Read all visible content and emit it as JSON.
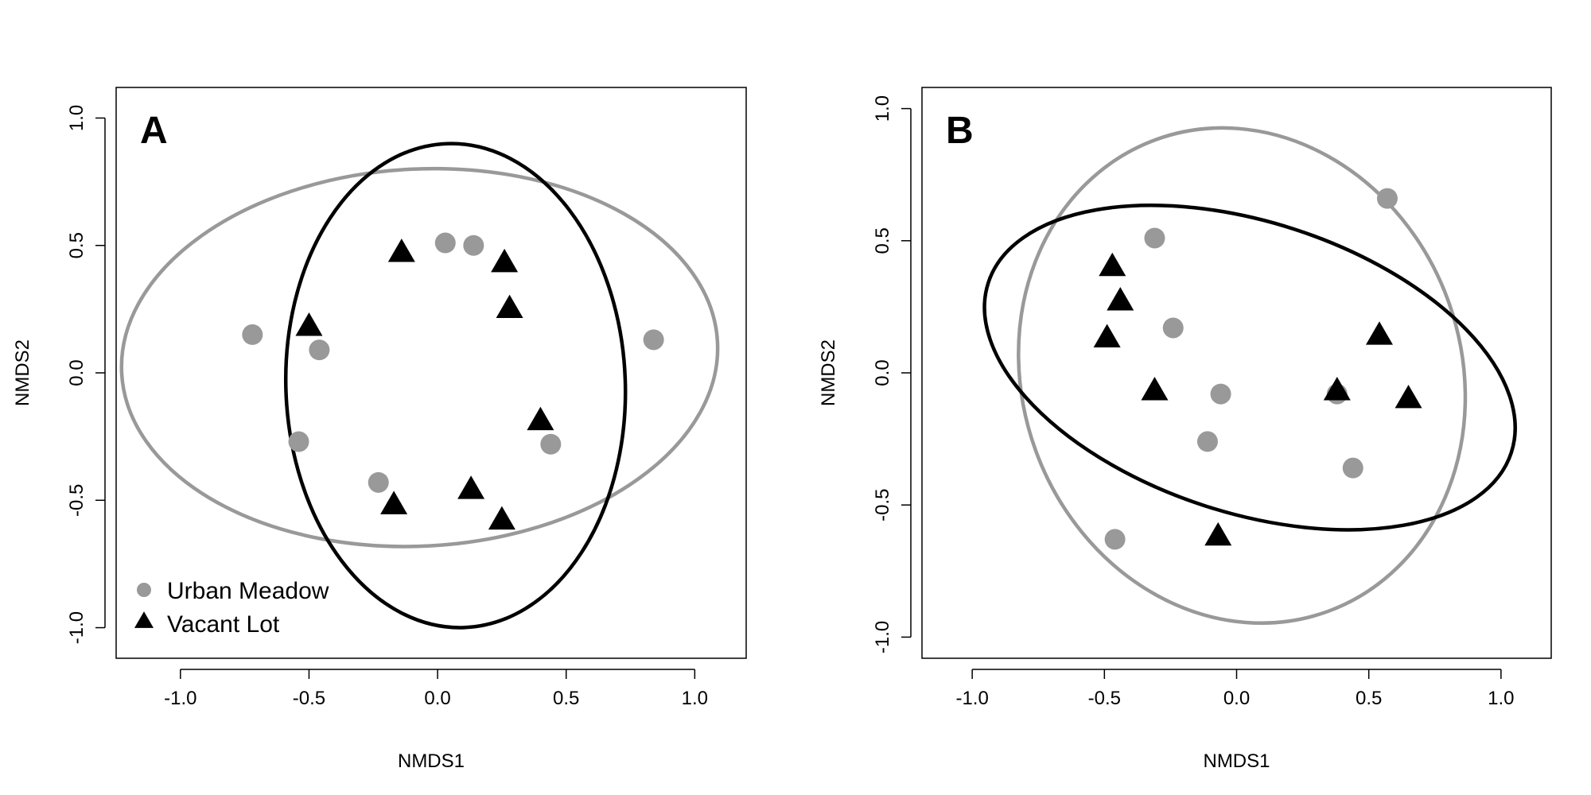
{
  "colors": {
    "urban_meadow": "#999999",
    "vacant_lot": "#000000"
  },
  "legend": [
    {
      "label": "Urban Meadow",
      "shape": "circle",
      "color": "#999999"
    },
    {
      "label": "Vacant Lot",
      "shape": "triangle",
      "color": "#000000"
    }
  ],
  "chart_data": [
    {
      "type": "scatter",
      "panel_label": "A",
      "xlabel": "NMDS1",
      "ylabel": "NMDS2",
      "xlim": [
        -1.25,
        1.2
      ],
      "ylim": [
        -1.12,
        1.12
      ],
      "xticks": [
        -1.0,
        -0.5,
        0.0,
        0.5,
        1.0
      ],
      "yticks": [
        -1.0,
        -0.5,
        0.0,
        0.5,
        1.0
      ],
      "xtick_labels": [
        "-1.0",
        "-0.5",
        "0.0",
        "0.5",
        "1.0"
      ],
      "ytick_labels": [
        "-1.0",
        "-0.5",
        "0.0",
        "0.5",
        "1.0"
      ],
      "legend_position": "bottom-left",
      "series": [
        {
          "name": "Urban Meadow",
          "marker": "circle",
          "color": "#999999",
          "points": [
            [
              -0.72,
              0.15
            ],
            [
              -0.46,
              0.09
            ],
            [
              -0.54,
              -0.27
            ],
            [
              -0.23,
              -0.43
            ],
            [
              0.03,
              0.51
            ],
            [
              0.14,
              0.5
            ],
            [
              0.44,
              -0.28
            ],
            [
              0.84,
              0.13
            ]
          ]
        },
        {
          "name": "Vacant Lot",
          "marker": "triangle",
          "color": "#000000",
          "points": [
            [
              -0.5,
              0.18
            ],
            [
              -0.14,
              0.47
            ],
            [
              0.26,
              0.43
            ],
            [
              0.28,
              0.25
            ],
            [
              0.4,
              -0.19
            ],
            [
              0.13,
              -0.46
            ],
            [
              0.25,
              -0.58
            ],
            [
              -0.17,
              -0.52
            ]
          ]
        }
      ],
      "ellipses": [
        {
          "group": "Urban Meadow",
          "color": "#999999",
          "center": [
            -0.07,
            0.06
          ],
          "semi_axes": [
            1.16,
            0.74
          ],
          "angle_deg": 3
        },
        {
          "group": "Vacant Lot",
          "color": "#000000",
          "center": [
            0.07,
            -0.05
          ],
          "semi_axes": [
            0.66,
            0.95
          ],
          "angle_deg": 2
        }
      ]
    },
    {
      "type": "scatter",
      "panel_label": "B",
      "xlabel": "NMDS1",
      "ylabel": "NMDS2",
      "xlim": [
        -1.19,
        1.19
      ],
      "ylim": [
        -1.08,
        1.08
      ],
      "xticks": [
        -1.0,
        -0.5,
        0.0,
        0.5,
        1.0
      ],
      "yticks": [
        -1.0,
        -0.5,
        0.0,
        0.5,
        1.0
      ],
      "xtick_labels": [
        "-1.0",
        "-0.5",
        "0.0",
        "0.5",
        "1.0"
      ],
      "ytick_labels": [
        "-1.0",
        "-0.5",
        "0.0",
        "0.5",
        "1.0"
      ],
      "series": [
        {
          "name": "Urban Meadow",
          "marker": "circle",
          "color": "#999999",
          "points": [
            [
              -0.31,
              0.51
            ],
            [
              -0.24,
              0.17
            ],
            [
              -0.06,
              -0.08
            ],
            [
              -0.11,
              -0.26
            ],
            [
              -0.46,
              -0.63
            ],
            [
              0.38,
              -0.08
            ],
            [
              0.44,
              -0.36
            ],
            [
              0.57,
              0.66
            ]
          ]
        },
        {
          "name": "Vacant Lot",
          "marker": "triangle",
          "color": "#000000",
          "points": [
            [
              -0.47,
              0.4
            ],
            [
              -0.44,
              0.27
            ],
            [
              -0.49,
              0.13
            ],
            [
              -0.31,
              -0.07
            ],
            [
              -0.07,
              -0.62
            ],
            [
              0.38,
              -0.07
            ],
            [
              0.54,
              0.14
            ],
            [
              0.65,
              -0.1
            ]
          ]
        }
      ],
      "ellipses": [
        {
          "group": "Urban Meadow",
          "color": "#999999",
          "center": [
            0.02,
            -0.01
          ],
          "semi_axes": [
            0.83,
            0.95
          ],
          "angle_deg": 20
        },
        {
          "group": "Vacant Lot",
          "color": "#000000",
          "center": [
            0.05,
            0.02
          ],
          "semi_axes": [
            1.04,
            0.55
          ],
          "angle_deg": -18
        }
      ]
    }
  ]
}
